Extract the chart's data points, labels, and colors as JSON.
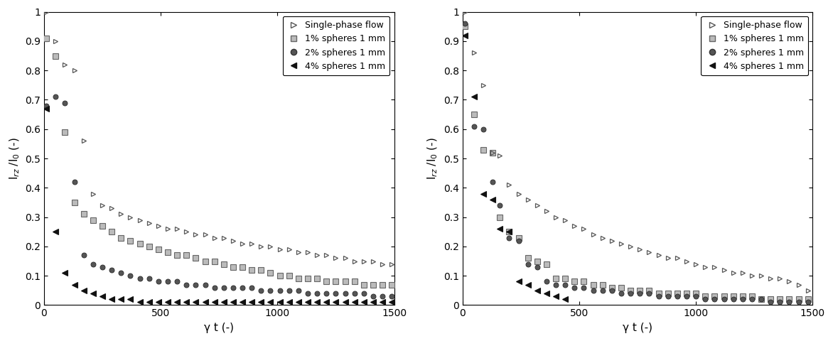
{
  "left": {
    "single_phase": {
      "x": [
        10,
        50,
        90,
        130,
        170,
        210,
        250,
        290,
        330,
        370,
        410,
        450,
        490,
        530,
        570,
        610,
        650,
        690,
        730,
        770,
        810,
        850,
        890,
        930,
        970,
        1010,
        1050,
        1090,
        1130,
        1170,
        1210,
        1250,
        1290,
        1330,
        1370,
        1410,
        1450,
        1490
      ],
      "y": [
        1.0,
        0.9,
        0.82,
        0.8,
        0.56,
        0.38,
        0.34,
        0.33,
        0.31,
        0.3,
        0.29,
        0.28,
        0.27,
        0.26,
        0.26,
        0.25,
        0.24,
        0.24,
        0.23,
        0.23,
        0.22,
        0.21,
        0.21,
        0.2,
        0.2,
        0.19,
        0.19,
        0.18,
        0.18,
        0.17,
        0.17,
        0.16,
        0.16,
        0.15,
        0.15,
        0.15,
        0.14,
        0.14
      ]
    },
    "one_pct": {
      "x": [
        10,
        50,
        90,
        130,
        170,
        210,
        250,
        290,
        330,
        370,
        410,
        450,
        490,
        530,
        570,
        610,
        650,
        690,
        730,
        770,
        810,
        850,
        890,
        930,
        970,
        1010,
        1050,
        1090,
        1130,
        1170,
        1210,
        1250,
        1290,
        1330,
        1370,
        1410,
        1450,
        1490
      ],
      "y": [
        0.91,
        0.85,
        0.59,
        0.35,
        0.31,
        0.29,
        0.27,
        0.25,
        0.23,
        0.22,
        0.21,
        0.2,
        0.19,
        0.18,
        0.17,
        0.17,
        0.16,
        0.15,
        0.15,
        0.14,
        0.13,
        0.13,
        0.12,
        0.12,
        0.11,
        0.1,
        0.1,
        0.09,
        0.09,
        0.09,
        0.08,
        0.08,
        0.08,
        0.08,
        0.07,
        0.07,
        0.07,
        0.07
      ]
    },
    "two_pct": {
      "x": [
        10,
        50,
        90,
        130,
        170,
        210,
        250,
        290,
        330,
        370,
        410,
        450,
        490,
        530,
        570,
        610,
        650,
        690,
        730,
        770,
        810,
        850,
        890,
        930,
        970,
        1010,
        1050,
        1090,
        1130,
        1170,
        1210,
        1250,
        1290,
        1330,
        1370,
        1410,
        1450,
        1490
      ],
      "y": [
        0.68,
        0.71,
        0.69,
        0.42,
        0.17,
        0.14,
        0.13,
        0.12,
        0.11,
        0.1,
        0.09,
        0.09,
        0.08,
        0.08,
        0.08,
        0.07,
        0.07,
        0.07,
        0.06,
        0.06,
        0.06,
        0.06,
        0.06,
        0.05,
        0.05,
        0.05,
        0.05,
        0.05,
        0.04,
        0.04,
        0.04,
        0.04,
        0.04,
        0.04,
        0.04,
        0.03,
        0.03,
        0.03
      ]
    },
    "four_pct": {
      "x": [
        10,
        50,
        90,
        130,
        170,
        210,
        250,
        290,
        330,
        370,
        410,
        450,
        490,
        530,
        570,
        610,
        650,
        690,
        730,
        770,
        810,
        850,
        890,
        930,
        970,
        1010,
        1050,
        1090,
        1130,
        1170,
        1210,
        1250,
        1290,
        1330,
        1370,
        1410,
        1450,
        1490
      ],
      "y": [
        0.67,
        0.25,
        0.11,
        0.07,
        0.05,
        0.04,
        0.03,
        0.02,
        0.02,
        0.02,
        0.01,
        0.01,
        0.01,
        0.01,
        0.01,
        0.01,
        0.01,
        0.01,
        0.01,
        0.01,
        0.01,
        0.01,
        0.01,
        0.01,
        0.01,
        0.01,
        0.01,
        0.01,
        0.01,
        0.01,
        0.01,
        0.01,
        0.01,
        0.01,
        0.01,
        0.01,
        0.01,
        0.01
      ]
    }
  },
  "right": {
    "single_phase": {
      "x": [
        10,
        50,
        90,
        130,
        160,
        200,
        240,
        280,
        320,
        360,
        400,
        440,
        480,
        520,
        560,
        600,
        640,
        680,
        720,
        760,
        800,
        840,
        880,
        920,
        960,
        1000,
        1040,
        1080,
        1120,
        1160,
        1200,
        1240,
        1280,
        1320,
        1360,
        1400,
        1440,
        1480
      ],
      "y": [
        1.0,
        0.86,
        0.75,
        0.52,
        0.51,
        0.41,
        0.38,
        0.36,
        0.34,
        0.32,
        0.3,
        0.29,
        0.27,
        0.26,
        0.24,
        0.23,
        0.22,
        0.21,
        0.2,
        0.19,
        0.18,
        0.17,
        0.16,
        0.16,
        0.15,
        0.14,
        0.13,
        0.13,
        0.12,
        0.11,
        0.11,
        0.1,
        0.1,
        0.09,
        0.09,
        0.08,
        0.07,
        0.05
      ]
    },
    "one_pct": {
      "x": [
        10,
        50,
        90,
        130,
        160,
        200,
        240,
        280,
        320,
        360,
        400,
        440,
        480,
        520,
        560,
        600,
        640,
        680,
        720,
        760,
        800,
        840,
        880,
        920,
        960,
        1000,
        1040,
        1080,
        1120,
        1160,
        1200,
        1240,
        1280,
        1320,
        1360,
        1400,
        1440,
        1480
      ],
      "y": [
        0.95,
        0.65,
        0.53,
        0.52,
        0.3,
        0.25,
        0.23,
        0.16,
        0.15,
        0.14,
        0.09,
        0.09,
        0.08,
        0.08,
        0.07,
        0.07,
        0.06,
        0.06,
        0.05,
        0.05,
        0.05,
        0.04,
        0.04,
        0.04,
        0.04,
        0.04,
        0.03,
        0.03,
        0.03,
        0.03,
        0.03,
        0.03,
        0.02,
        0.02,
        0.02,
        0.02,
        0.02,
        0.02
      ]
    },
    "two_pct": {
      "x": [
        10,
        50,
        90,
        130,
        160,
        200,
        240,
        280,
        320,
        360,
        400,
        440,
        480,
        520,
        560,
        600,
        640,
        680,
        720,
        760,
        800,
        840,
        880,
        920,
        960,
        1000,
        1040,
        1080,
        1120,
        1160,
        1200,
        1240,
        1280,
        1320,
        1360,
        1400,
        1440,
        1480
      ],
      "y": [
        0.96,
        0.61,
        0.6,
        0.42,
        0.34,
        0.23,
        0.22,
        0.14,
        0.13,
        0.08,
        0.07,
        0.07,
        0.06,
        0.06,
        0.05,
        0.05,
        0.05,
        0.04,
        0.04,
        0.04,
        0.04,
        0.03,
        0.03,
        0.03,
        0.03,
        0.03,
        0.02,
        0.02,
        0.02,
        0.02,
        0.02,
        0.02,
        0.02,
        0.01,
        0.01,
        0.01,
        0.01,
        0.01
      ]
    },
    "four_pct": {
      "x": [
        10,
        50,
        90,
        130,
        160,
        200,
        240,
        280,
        320,
        360,
        400,
        440
      ],
      "y": [
        0.92,
        0.71,
        0.38,
        0.36,
        0.26,
        0.25,
        0.08,
        0.07,
        0.05,
        0.04,
        0.03,
        0.02
      ]
    }
  },
  "ylabel": "I$_{rz}$ /I$_0$ (-)",
  "xlabel": "γ t (-)",
  "xlim": [
    0,
    1500
  ],
  "ylim": [
    0,
    1.0
  ],
  "yticks": [
    0.0,
    0.1,
    0.2,
    0.3,
    0.4,
    0.5,
    0.6,
    0.7,
    0.8,
    0.9,
    1.0
  ],
  "xticks": [
    0,
    500,
    1000,
    1500
  ],
  "yticklabels": [
    "0",
    "0.1",
    "0.2",
    "0.3",
    "0.4",
    "0.5",
    "0.6",
    "0.7",
    "0.8",
    "0.9",
    "1"
  ]
}
